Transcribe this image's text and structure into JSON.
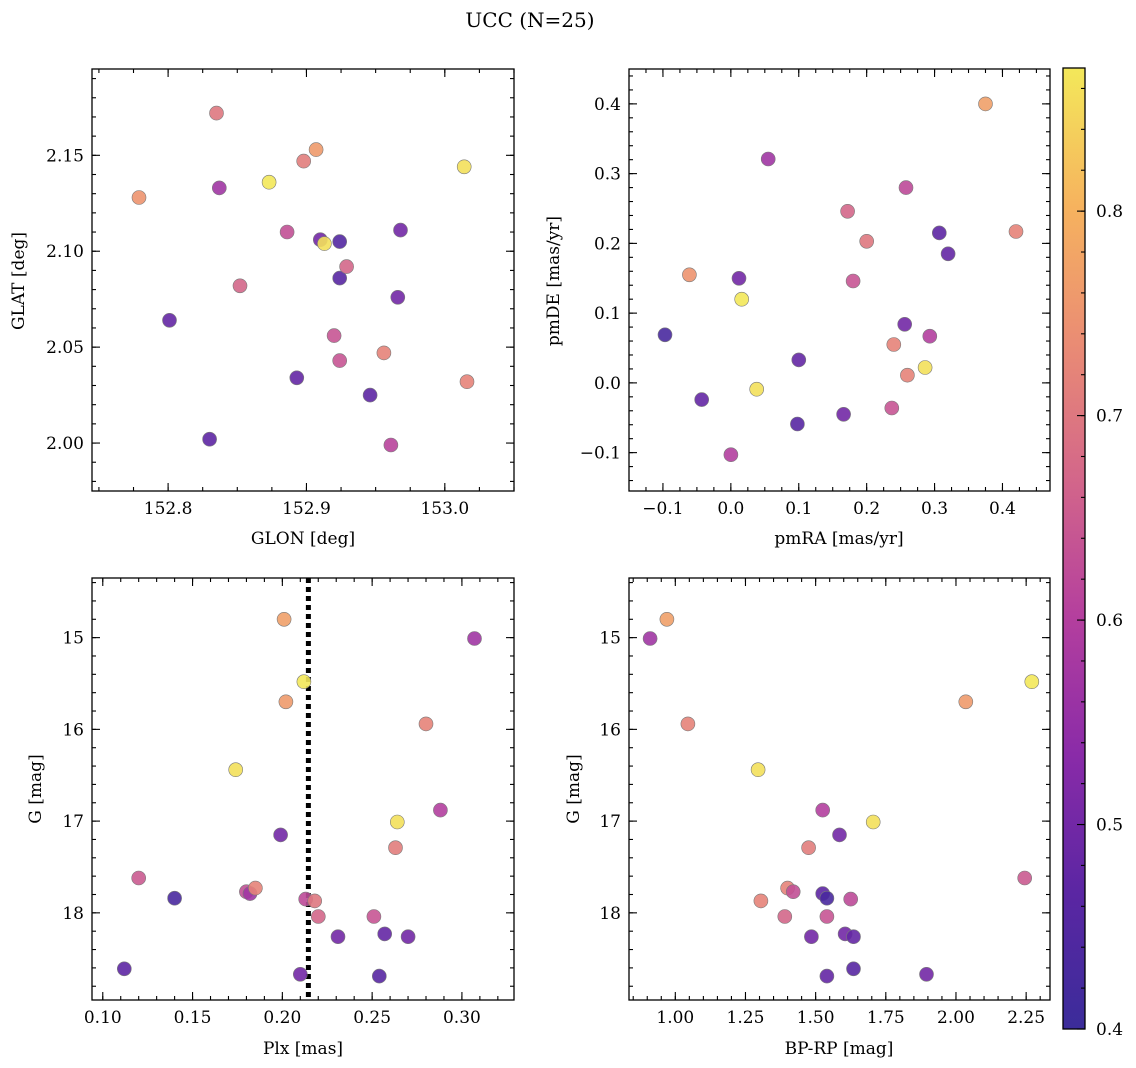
{
  "title": "UCC (N=25)",
  "colormap": {
    "name": "plasma",
    "stops": [
      "#3b2c9a",
      "#5b26a3",
      "#8a2ba8",
      "#b43f9e",
      "#d3668a",
      "#ea8c74",
      "#f6b35e",
      "#f3e85a"
    ],
    "range": [
      0.4,
      0.87
    ],
    "ticks": [
      "0.4",
      "0.5",
      "0.6",
      "0.7",
      "0.8"
    ]
  },
  "chart_data": [
    {
      "type": "scatter",
      "xlabel": "GLON [deg]",
      "ylabel": "GLAT [deg]",
      "xlim": [
        152.745,
        153.05
      ],
      "ylim": [
        1.975,
        2.195
      ],
      "xticks": [
        "152.8",
        "152.9",
        "153.0"
      ],
      "yticks": [
        "2.00",
        "2.05",
        "2.10",
        "2.15"
      ],
      "points": [
        {
          "x": 152.779,
          "y": 2.128,
          "c": 0.75
        },
        {
          "x": 152.801,
          "y": 2.064,
          "c": 0.48
        },
        {
          "x": 152.83,
          "y": 2.002,
          "c": 0.47
        },
        {
          "x": 152.835,
          "y": 2.172,
          "c": 0.7
        },
        {
          "x": 152.837,
          "y": 2.133,
          "c": 0.57
        },
        {
          "x": 152.852,
          "y": 2.082,
          "c": 0.67
        },
        {
          "x": 152.873,
          "y": 2.136,
          "c": 0.87
        },
        {
          "x": 152.886,
          "y": 2.11,
          "c": 0.63
        },
        {
          "x": 152.893,
          "y": 2.034,
          "c": 0.48
        },
        {
          "x": 152.898,
          "y": 2.147,
          "c": 0.71
        },
        {
          "x": 152.907,
          "y": 2.153,
          "c": 0.76
        },
        {
          "x": 152.91,
          "y": 2.106,
          "c": 0.5
        },
        {
          "x": 152.913,
          "y": 2.104,
          "c": 0.86
        },
        {
          "x": 152.92,
          "y": 2.056,
          "c": 0.64
        },
        {
          "x": 152.924,
          "y": 2.043,
          "c": 0.64
        },
        {
          "x": 152.924,
          "y": 2.105,
          "c": 0.45
        },
        {
          "x": 152.924,
          "y": 2.086,
          "c": 0.46
        },
        {
          "x": 152.929,
          "y": 2.092,
          "c": 0.67
        },
        {
          "x": 152.946,
          "y": 2.025,
          "c": 0.47
        },
        {
          "x": 152.956,
          "y": 2.047,
          "c": 0.72
        },
        {
          "x": 152.961,
          "y": 1.999,
          "c": 0.61
        },
        {
          "x": 152.966,
          "y": 2.076,
          "c": 0.5
        },
        {
          "x": 152.968,
          "y": 2.111,
          "c": 0.5
        },
        {
          "x": 153.014,
          "y": 2.144,
          "c": 0.86
        },
        {
          "x": 153.016,
          "y": 2.032,
          "c": 0.72
        }
      ]
    },
    {
      "type": "scatter",
      "xlabel": "pmRA [mas/yr]",
      "ylabel": "pmDE [mas/yr]",
      "xlim": [
        -0.15,
        0.47
      ],
      "ylim": [
        -0.155,
        0.45
      ],
      "xticks": [
        "−0.1",
        "0.0",
        "0.1",
        "0.2",
        "0.3",
        "0.4"
      ],
      "yticks": [
        "−0.1",
        "0.0",
        "0.1",
        "0.2",
        "0.3",
        "0.4"
      ],
      "points": [
        {
          "x": -0.097,
          "y": 0.069,
          "c": 0.43
        },
        {
          "x": -0.061,
          "y": 0.155,
          "c": 0.75
        },
        {
          "x": -0.043,
          "y": -0.024,
          "c": 0.48
        },
        {
          "x": 0.0,
          "y": -0.103,
          "c": 0.6
        },
        {
          "x": 0.012,
          "y": 0.15,
          "c": 0.5
        },
        {
          "x": 0.016,
          "y": 0.12,
          "c": 0.87
        },
        {
          "x": 0.038,
          "y": -0.009,
          "c": 0.86
        },
        {
          "x": 0.055,
          "y": 0.321,
          "c": 0.57
        },
        {
          "x": 0.098,
          "y": -0.059,
          "c": 0.46
        },
        {
          "x": 0.1,
          "y": 0.033,
          "c": 0.48
        },
        {
          "x": 0.166,
          "y": -0.045,
          "c": 0.5
        },
        {
          "x": 0.172,
          "y": 0.246,
          "c": 0.67
        },
        {
          "x": 0.18,
          "y": 0.146,
          "c": 0.64
        },
        {
          "x": 0.2,
          "y": 0.203,
          "c": 0.7
        },
        {
          "x": 0.237,
          "y": -0.036,
          "c": 0.64
        },
        {
          "x": 0.24,
          "y": 0.055,
          "c": 0.72
        },
        {
          "x": 0.256,
          "y": 0.084,
          "c": 0.5
        },
        {
          "x": 0.258,
          "y": 0.28,
          "c": 0.62
        },
        {
          "x": 0.26,
          "y": 0.011,
          "c": 0.72
        },
        {
          "x": 0.286,
          "y": 0.022,
          "c": 0.86
        },
        {
          "x": 0.293,
          "y": 0.067,
          "c": 0.6
        },
        {
          "x": 0.307,
          "y": 0.215,
          "c": 0.47
        },
        {
          "x": 0.32,
          "y": 0.185,
          "c": 0.48
        },
        {
          "x": 0.375,
          "y": 0.4,
          "c": 0.77
        },
        {
          "x": 0.42,
          "y": 0.217,
          "c": 0.72
        }
      ]
    },
    {
      "type": "scatter",
      "xlabel": "Plx [mas]",
      "ylabel": "G [mag]",
      "xlim": [
        0.094,
        0.329
      ],
      "ylim": [
        18.95,
        14.35
      ],
      "inverted_y": true,
      "vline": 0.2145,
      "xticks": [
        "0.10",
        "0.15",
        "0.20",
        "0.25",
        "0.30"
      ],
      "yticks": [
        "15",
        "16",
        "17",
        "18"
      ],
      "points": [
        {
          "x": 0.112,
          "y": 18.61,
          "c": 0.47
        },
        {
          "x": 0.12,
          "y": 17.62,
          "c": 0.65
        },
        {
          "x": 0.14,
          "y": 17.84,
          "c": 0.43
        },
        {
          "x": 0.174,
          "y": 16.44,
          "c": 0.86
        },
        {
          "x": 0.18,
          "y": 17.77,
          "c": 0.63
        },
        {
          "x": 0.182,
          "y": 17.79,
          "c": 0.57
        },
        {
          "x": 0.185,
          "y": 17.73,
          "c": 0.72
        },
        {
          "x": 0.199,
          "y": 17.15,
          "c": 0.5
        },
        {
          "x": 0.201,
          "y": 14.8,
          "c": 0.77
        },
        {
          "x": 0.202,
          "y": 15.7,
          "c": 0.76
        },
        {
          "x": 0.21,
          "y": 18.67,
          "c": 0.5
        },
        {
          "x": 0.212,
          "y": 15.48,
          "c": 0.87
        },
        {
          "x": 0.213,
          "y": 17.85,
          "c": 0.62
        },
        {
          "x": 0.218,
          "y": 17.87,
          "c": 0.7
        },
        {
          "x": 0.22,
          "y": 18.04,
          "c": 0.67
        },
        {
          "x": 0.231,
          "y": 18.26,
          "c": 0.5
        },
        {
          "x": 0.251,
          "y": 18.04,
          "c": 0.64
        },
        {
          "x": 0.254,
          "y": 18.69,
          "c": 0.46
        },
        {
          "x": 0.257,
          "y": 18.23,
          "c": 0.48
        },
        {
          "x": 0.263,
          "y": 17.29,
          "c": 0.71
        },
        {
          "x": 0.264,
          "y": 17.01,
          "c": 0.86
        },
        {
          "x": 0.27,
          "y": 18.26,
          "c": 0.5
        },
        {
          "x": 0.28,
          "y": 15.94,
          "c": 0.72
        },
        {
          "x": 0.288,
          "y": 16.88,
          "c": 0.6
        },
        {
          "x": 0.307,
          "y": 15.01,
          "c": 0.57
        }
      ]
    },
    {
      "type": "scatter",
      "xlabel": "BP-RP [mag]",
      "ylabel": "G [mag]",
      "xlim": [
        0.835,
        2.335
      ],
      "ylim": [
        18.95,
        14.35
      ],
      "inverted_y": true,
      "xticks": [
        "1.00",
        "1.25",
        "1.50",
        "1.75",
        "2.00",
        "2.25"
      ],
      "yticks": [
        "15",
        "16",
        "17",
        "18"
      ],
      "points": [
        {
          "x": 0.91,
          "y": 15.01,
          "c": 0.57
        },
        {
          "x": 0.97,
          "y": 14.8,
          "c": 0.77
        },
        {
          "x": 1.045,
          "y": 15.94,
          "c": 0.72
        },
        {
          "x": 1.295,
          "y": 16.44,
          "c": 0.86
        },
        {
          "x": 1.305,
          "y": 17.87,
          "c": 0.72
        },
        {
          "x": 1.39,
          "y": 18.04,
          "c": 0.67
        },
        {
          "x": 1.4,
          "y": 17.73,
          "c": 0.72
        },
        {
          "x": 1.42,
          "y": 17.77,
          "c": 0.63
        },
        {
          "x": 1.475,
          "y": 17.29,
          "c": 0.71
        },
        {
          "x": 1.485,
          "y": 18.26,
          "c": 0.5
        },
        {
          "x": 1.525,
          "y": 16.88,
          "c": 0.6
        },
        {
          "x": 1.525,
          "y": 17.79,
          "c": 0.47
        },
        {
          "x": 1.54,
          "y": 17.84,
          "c": 0.43
        },
        {
          "x": 1.54,
          "y": 18.04,
          "c": 0.64
        },
        {
          "x": 1.54,
          "y": 18.69,
          "c": 0.48
        },
        {
          "x": 1.585,
          "y": 17.15,
          "c": 0.5
        },
        {
          "x": 1.605,
          "y": 18.23,
          "c": 0.5
        },
        {
          "x": 1.625,
          "y": 17.85,
          "c": 0.62
        },
        {
          "x": 1.635,
          "y": 18.26,
          "c": 0.48
        },
        {
          "x": 1.635,
          "y": 18.61,
          "c": 0.46
        },
        {
          "x": 1.705,
          "y": 17.01,
          "c": 0.86
        },
        {
          "x": 1.895,
          "y": 18.67,
          "c": 0.5
        },
        {
          "x": 2.035,
          "y": 15.7,
          "c": 0.76
        },
        {
          "x": 2.245,
          "y": 17.62,
          "c": 0.65
        },
        {
          "x": 2.27,
          "y": 15.48,
          "c": 0.87
        }
      ]
    }
  ]
}
